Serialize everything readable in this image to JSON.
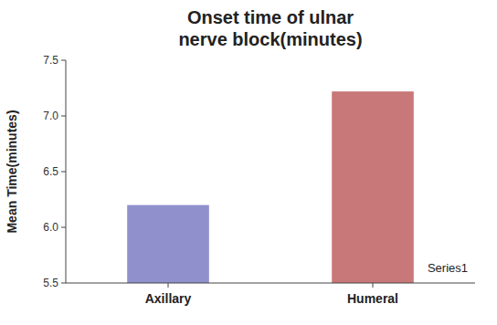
{
  "chart_data": {
    "type": "bar",
    "title": "Onset time of ulnar\nnerve block(minutes)",
    "ylabel": "Mean Time(minutes)",
    "categories": [
      "Axillary",
      "Humeral"
    ],
    "series": [
      {
        "name": "Series1",
        "colors": [
          "#9090cc",
          "#c87878"
        ],
        "values": [
          6.2,
          7.22
        ]
      }
    ],
    "ylim": [
      5.5,
      7.5
    ],
    "yticks": [
      5.5,
      {
        "value": 6,
        "label": "6.0"
      },
      {
        "value": 6.5,
        "label": "6.5"
      },
      {
        "value": 7,
        "label": "7.0"
      },
      7.5
    ],
    "grid": false,
    "legend": "lower right"
  }
}
